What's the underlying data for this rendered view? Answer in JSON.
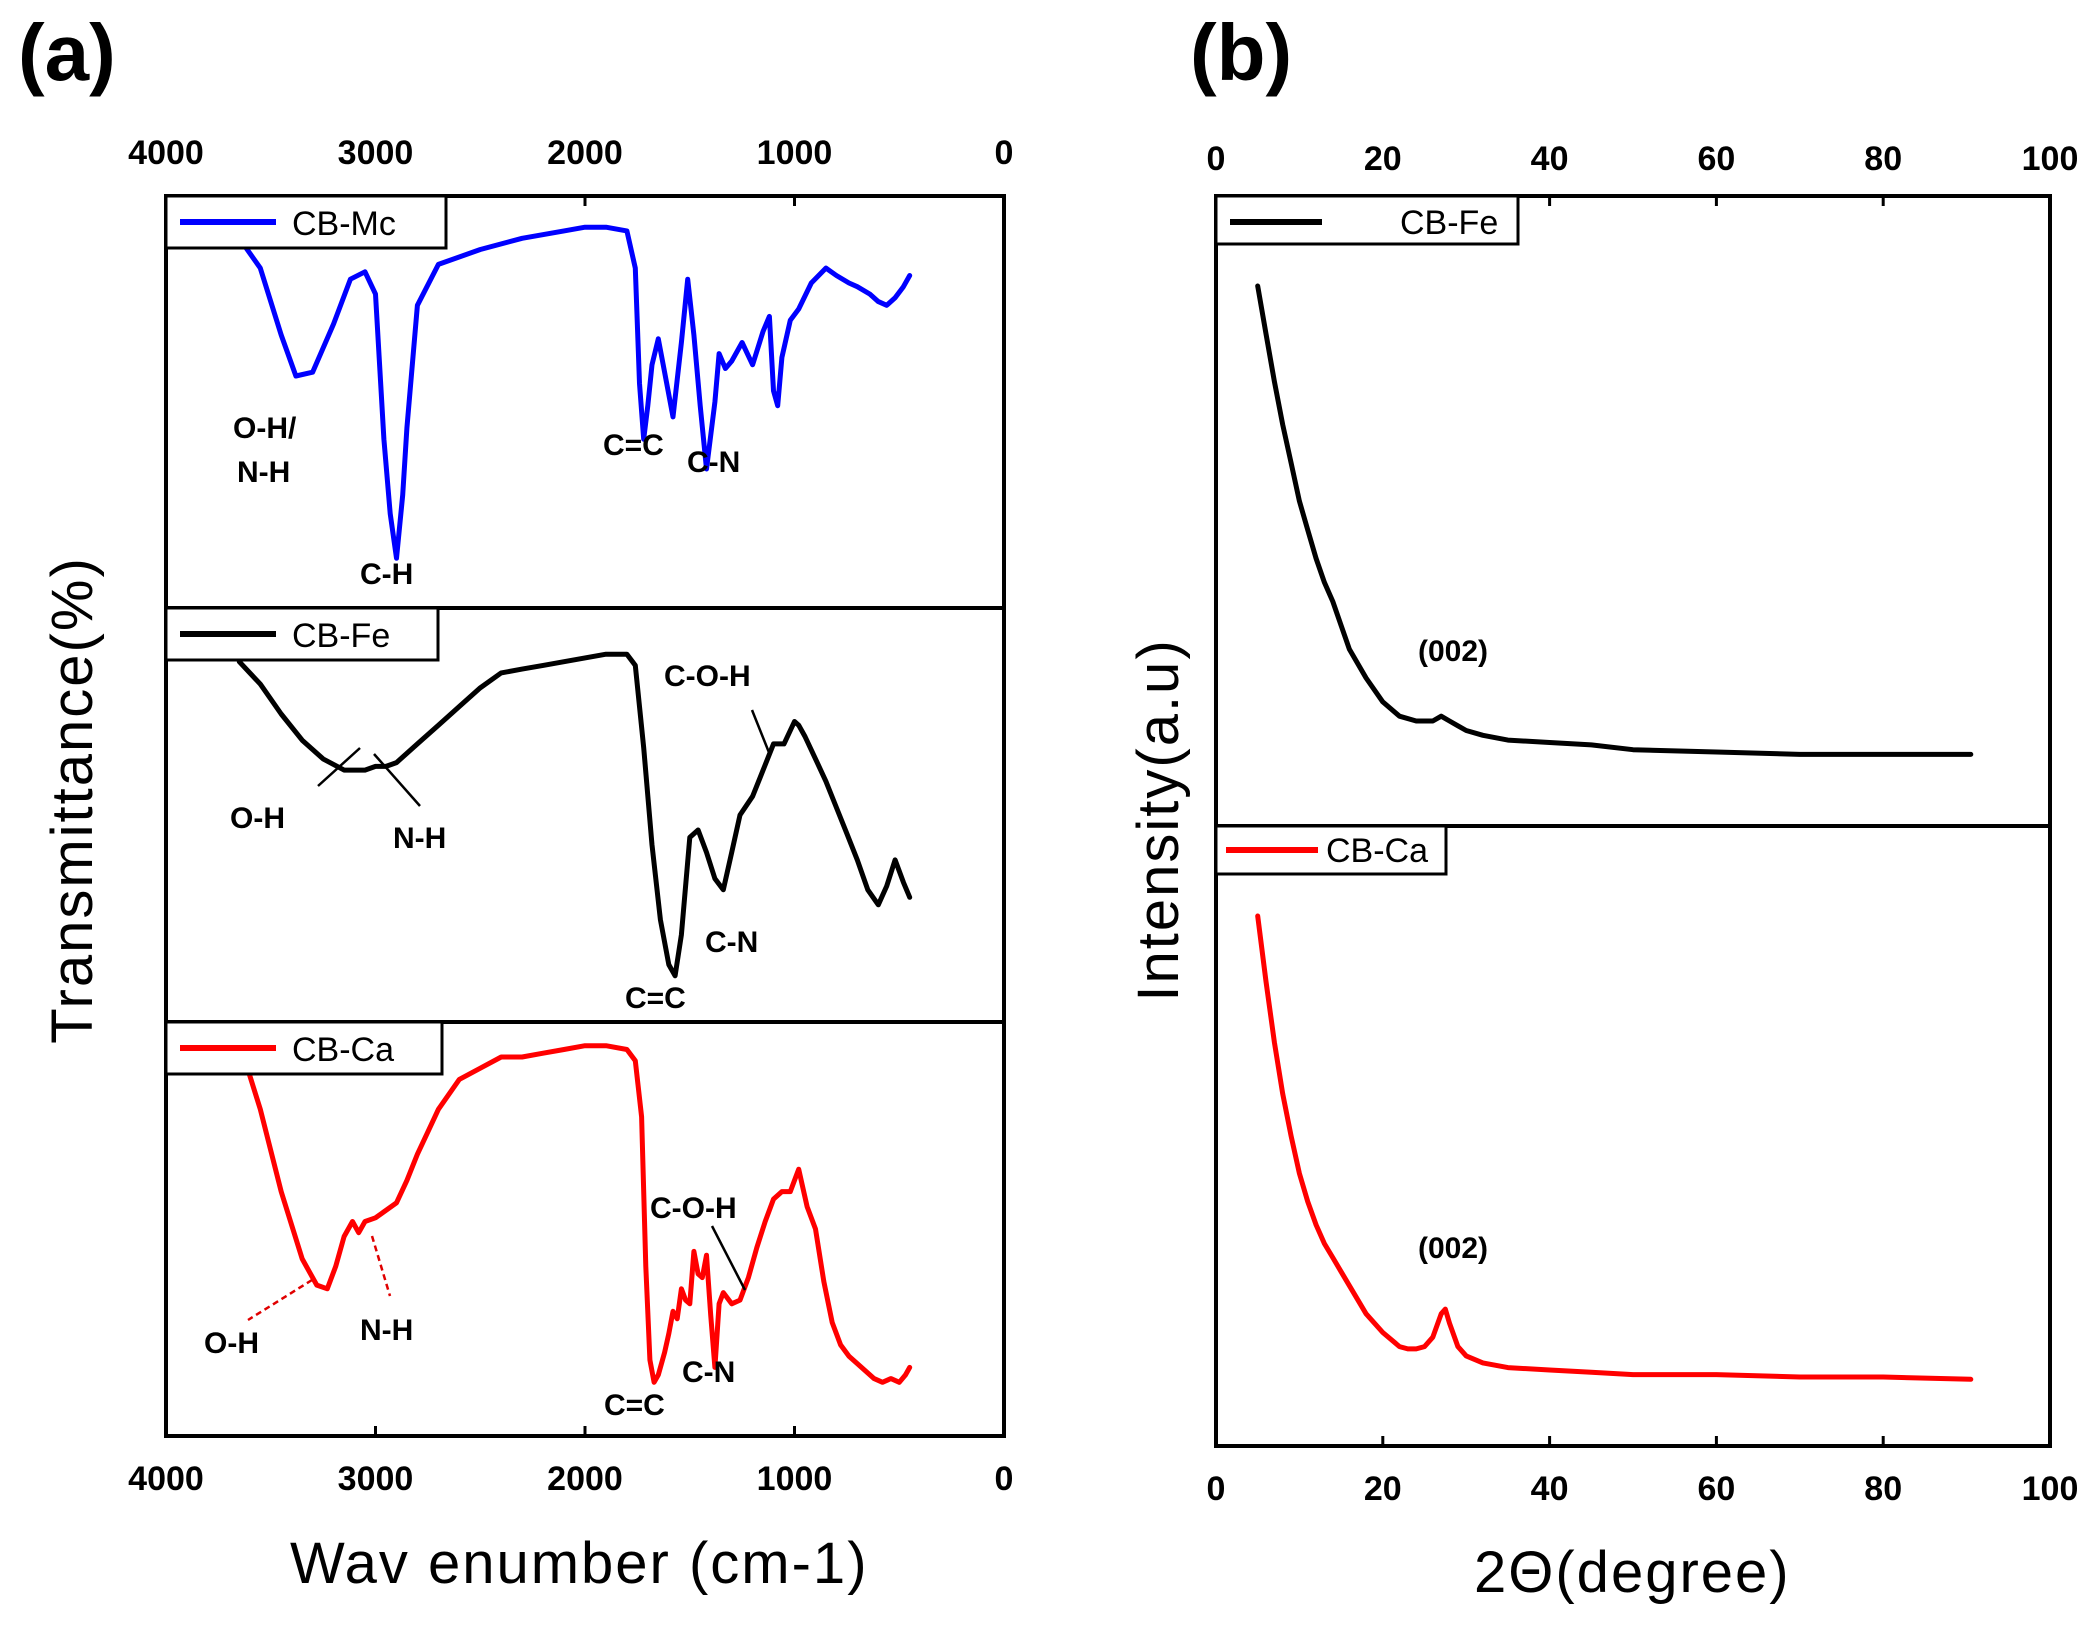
{
  "chart_data": [
    {
      "panel_label": "(a)",
      "type": "line",
      "xlabel": "Wav enumber (cm-1)",
      "ylabel": "Transmittance(%)",
      "xlim": [
        4000,
        0
      ],
      "x_ticks": [
        "4000",
        "3000",
        "2000",
        "1000",
        "0"
      ],
      "subplots": [
        {
          "legend": "CB-Mc",
          "color": "#0000ff",
          "x": [
            3650,
            3550,
            3450,
            3380,
            3300,
            3200,
            3120,
            3050,
            3000,
            2960,
            2930,
            2900,
            2870,
            2850,
            2800,
            2700,
            2500,
            2300,
            2100,
            2000,
            1900,
            1800,
            1760,
            1740,
            1720,
            1700,
            1680,
            1650,
            1620,
            1580,
            1540,
            1510,
            1480,
            1450,
            1420,
            1380,
            1360,
            1330,
            1300,
            1250,
            1200,
            1150,
            1120,
            1100,
            1080,
            1060,
            1020,
            980,
            920,
            850,
            800,
            740,
            700,
            640,
            600,
            560,
            520,
            480,
            450
          ],
          "y": [
            94,
            86,
            68,
            57,
            58,
            71,
            83,
            85,
            79,
            40,
            20,
            8,
            25,
            43,
            76,
            87,
            91,
            94,
            96,
            97,
            97,
            96,
            86,
            55,
            40,
            49,
            60,
            67,
            58,
            46,
            66,
            83,
            68,
            49,
            32,
            50,
            63,
            59,
            61,
            66,
            60,
            69,
            73,
            53,
            49,
            62,
            72,
            75,
            82,
            86,
            84,
            82,
            81,
            79,
            77,
            76,
            78,
            81,
            84
          ]
        },
        {
          "legend": "CB-Fe",
          "color": "#000000",
          "x": [
            3650,
            3550,
            3450,
            3350,
            3250,
            3150,
            3050,
            3000,
            2950,
            2900,
            2800,
            2700,
            2600,
            2500,
            2400,
            2300,
            2200,
            2100,
            2000,
            1900,
            1800,
            1760,
            1720,
            1680,
            1640,
            1600,
            1570,
            1540,
            1500,
            1460,
            1420,
            1380,
            1340,
            1300,
            1260,
            1200,
            1150,
            1100,
            1050,
            1000,
            980,
            950,
            900,
            850,
            800,
            750,
            700,
            650,
            600,
            560,
            520,
            480,
            450
          ],
          "y": [
            91,
            85,
            77,
            70,
            65,
            62,
            62,
            63,
            63,
            64,
            69,
            74,
            79,
            84,
            88,
            89,
            90,
            91,
            92,
            93,
            93,
            90,
            68,
            42,
            22,
            10,
            7,
            18,
            44,
            46,
            40,
            33,
            30,
            40,
            50,
            55,
            62,
            69,
            69,
            75,
            74,
            71,
            65,
            59,
            52,
            45,
            38,
            30,
            26,
            31,
            38,
            32,
            28
          ]
        },
        {
          "legend": "CB-Ca",
          "color": "#ff0000",
          "x": [
            3650,
            3550,
            3450,
            3350,
            3280,
            3230,
            3190,
            3150,
            3110,
            3080,
            3050,
            3000,
            2950,
            2900,
            2850,
            2800,
            2750,
            2700,
            2600,
            2500,
            2400,
            2300,
            2200,
            2100,
            2000,
            1900,
            1800,
            1760,
            1730,
            1710,
            1690,
            1670,
            1650,
            1620,
            1600,
            1580,
            1560,
            1540,
            1520,
            1500,
            1480,
            1460,
            1440,
            1420,
            1400,
            1380,
            1360,
            1340,
            1300,
            1260,
            1220,
            1180,
            1140,
            1100,
            1060,
            1020,
            1000,
            980,
            960,
            940,
            900,
            860,
            820,
            780,
            740,
            700,
            660,
            620,
            580,
            540,
            500,
            470,
            450
          ],
          "y": [
            100,
            82,
            60,
            42,
            35,
            34,
            40,
            48,
            52,
            49,
            52,
            53,
            55,
            57,
            63,
            70,
            76,
            82,
            90,
            93,
            96,
            96,
            97,
            98,
            99,
            99,
            98,
            95,
            80,
            40,
            15,
            9,
            11,
            17,
            22,
            28,
            26,
            34,
            31,
            30,
            44,
            38,
            37,
            43,
            27,
            13,
            30,
            33,
            30,
            31,
            37,
            45,
            52,
            58,
            60,
            60,
            63,
            66,
            61,
            56,
            50,
            36,
            25,
            19,
            16,
            14,
            12,
            10,
            9,
            10,
            9,
            11,
            13
          ]
        }
      ],
      "annotations": [
        {
          "subplot": "CB-Mc",
          "text": "O-H/"
        },
        {
          "subplot": "CB-Mc",
          "text": "N-H"
        },
        {
          "subplot": "CB-Mc",
          "text": "C-H"
        },
        {
          "subplot": "CB-Mc",
          "text": "C=C"
        },
        {
          "subplot": "CB-Mc",
          "text": "C-N"
        },
        {
          "subplot": "CB-Fe",
          "text": "C-O-H"
        },
        {
          "subplot": "CB-Fe",
          "text": "O-H"
        },
        {
          "subplot": "CB-Fe",
          "text": "N-H"
        },
        {
          "subplot": "CB-Fe",
          "text": "C-N"
        },
        {
          "subplot": "CB-Fe",
          "text": "C=C"
        },
        {
          "subplot": "CB-Ca",
          "text": "C-O-H"
        },
        {
          "subplot": "CB-Ca",
          "text": "O-H"
        },
        {
          "subplot": "CB-Ca",
          "text": "N-H"
        },
        {
          "subplot": "CB-Ca",
          "text": "C-N"
        },
        {
          "subplot": "CB-Ca",
          "text": "C=C"
        }
      ]
    },
    {
      "panel_label": "(b)",
      "type": "line",
      "xlabel": "2Θ(degree)",
      "ylabel": "Intensity(a.u)",
      "xlim": [
        0,
        100
      ],
      "x_ticks": [
        "0",
        "20",
        "40",
        "60",
        "80",
        "100"
      ],
      "subplots": [
        {
          "legend": "CB-Fe",
          "color": "#000000",
          "peak_label": "(002)",
          "peak_x": 27,
          "x": [
            5,
            6,
            7,
            8,
            9,
            10,
            11,
            12,
            13,
            14,
            15,
            16,
            18,
            20,
            22,
            24,
            25,
            26,
            27,
            28,
            29,
            30,
            32,
            35,
            40,
            45,
            50,
            60,
            70,
            80,
            90.5
          ],
          "y": [
            100,
            90,
            80,
            71,
            63,
            55,
            49,
            43,
            38,
            34,
            29,
            24,
            18,
            13,
            10,
            9,
            9,
            9,
            10,
            9,
            8,
            7,
            6,
            5,
            4.5,
            4,
            3,
            2.5,
            2,
            2,
            2
          ]
        },
        {
          "legend": "CB-Ca",
          "color": "#ff0000",
          "peak_label": "(002)",
          "peak_x": 27,
          "x": [
            5,
            6,
            7,
            8,
            9,
            10,
            11,
            12,
            13,
            14,
            15,
            16,
            18,
            20,
            22,
            23,
            24,
            25,
            26,
            27,
            27.5,
            28,
            29,
            30,
            32,
            35,
            40,
            45,
            50,
            60,
            70,
            80,
            90.5
          ],
          "y": [
            100,
            86,
            73,
            62,
            53,
            45,
            39,
            34,
            30,
            27,
            24,
            21,
            15,
            11,
            8,
            7.5,
            7.5,
            8,
            10,
            15,
            16,
            13,
            8,
            6,
            4.5,
            3.5,
            3,
            2.5,
            2,
            2,
            1.5,
            1.5,
            1
          ]
        }
      ]
    }
  ]
}
